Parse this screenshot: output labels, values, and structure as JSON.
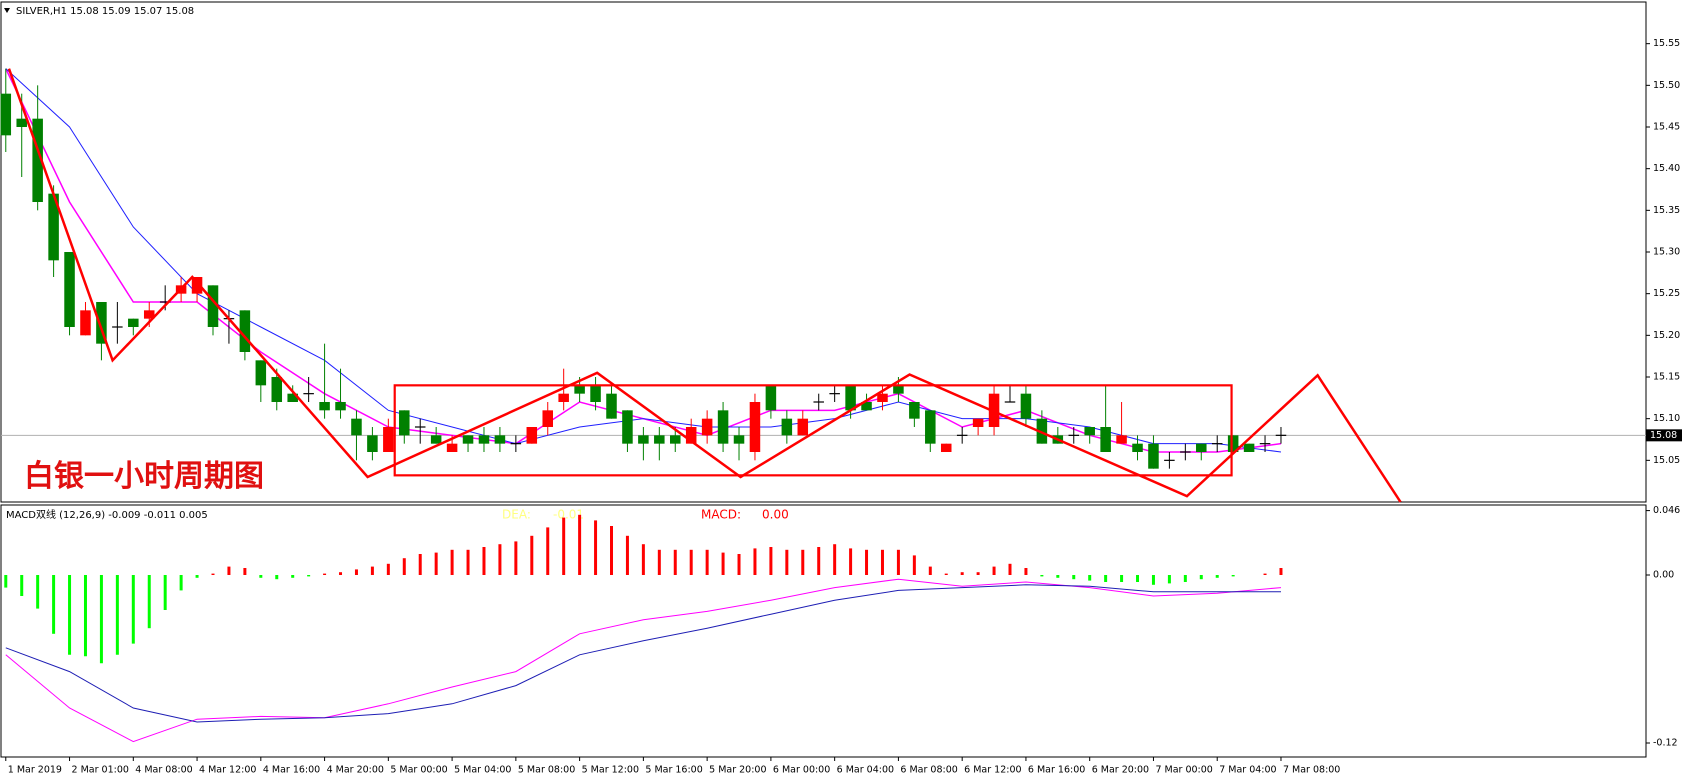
{
  "chart_data": [
    {
      "type": "candlestick",
      "title": "SILVER,H1 15.08 15.09 15.07 15.08",
      "annotation": "白银一小时周期图",
      "x": [
        0,
        1,
        2,
        3,
        4,
        5,
        6,
        7,
        8,
        9,
        10,
        11,
        12,
        13,
        14,
        15,
        16,
        17,
        18,
        19,
        20,
        21,
        22,
        23,
        24,
        25,
        26,
        27,
        28,
        29,
        30,
        31,
        32,
        33,
        34,
        35,
        36,
        37,
        38,
        39,
        40,
        41,
        42,
        43,
        44,
        45,
        46,
        47,
        48,
        49,
        50,
        51,
        52,
        53,
        54,
        55,
        56,
        57,
        58,
        59,
        60,
        61,
        62,
        63,
        64,
        65,
        66,
        67,
        68,
        69,
        70,
        71,
        72,
        73,
        74,
        75,
        76,
        77,
        78,
        79,
        80
      ],
      "open": [
        15.49,
        15.46,
        15.46,
        15.37,
        15.3,
        15.2,
        15.24,
        15.21,
        15.22,
        15.22,
        15.24,
        15.25,
        15.25,
        15.26,
        15.22,
        15.23,
        15.17,
        15.15,
        15.13,
        15.13,
        15.12,
        15.12,
        15.1,
        15.08,
        15.06,
        15.11,
        15.09,
        15.08,
        15.06,
        15.08,
        15.08,
        15.08,
        15.07,
        15.07,
        15.09,
        15.12,
        15.14,
        15.14,
        15.13,
        15.11,
        15.08,
        15.08,
        15.08,
        15.07,
        15.08,
        15.11,
        15.08,
        15.06,
        15.14,
        15.1,
        15.08,
        15.12,
        15.13,
        15.14,
        15.12,
        15.12,
        15.14,
        15.12,
        15.11,
        15.06,
        15.08,
        15.09,
        15.09,
        15.12,
        15.13,
        15.1,
        15.08,
        15.08,
        15.09,
        15.09,
        15.07,
        15.07,
        15.07,
        15.05,
        15.06,
        15.07,
        15.07,
        15.08,
        15.07,
        15.07,
        15.08
      ],
      "high": [
        15.52,
        15.49,
        15.5,
        15.38,
        15.3,
        15.24,
        15.24,
        15.24,
        15.22,
        15.24,
        15.26,
        15.27,
        15.27,
        15.26,
        15.23,
        15.23,
        15.17,
        15.16,
        15.14,
        15.15,
        15.19,
        15.16,
        15.11,
        15.09,
        15.1,
        15.11,
        15.1,
        15.09,
        15.08,
        15.08,
        15.09,
        15.09,
        15.08,
        15.09,
        15.12,
        15.16,
        15.15,
        15.15,
        15.14,
        15.11,
        15.09,
        15.09,
        15.09,
        15.1,
        15.11,
        15.12,
        15.09,
        15.13,
        15.14,
        15.11,
        15.11,
        15.13,
        15.14,
        15.14,
        15.13,
        15.14,
        15.15,
        15.12,
        15.11,
        15.07,
        15.09,
        15.1,
        15.14,
        15.14,
        15.14,
        15.11,
        15.09,
        15.09,
        15.09,
        15.14,
        15.12,
        15.08,
        15.08,
        15.06,
        15.07,
        15.07,
        15.08,
        15.08,
        15.07,
        15.08,
        15.09
      ],
      "low": [
        15.42,
        15.39,
        15.35,
        15.27,
        15.2,
        15.2,
        15.17,
        15.19,
        15.2,
        15.21,
        15.23,
        15.24,
        15.24,
        15.2,
        15.19,
        15.17,
        15.12,
        15.11,
        15.12,
        15.12,
        15.1,
        15.1,
        15.05,
        15.05,
        15.06,
        15.07,
        15.07,
        15.07,
        15.06,
        15.06,
        15.06,
        15.06,
        15.06,
        15.07,
        15.08,
        15.11,
        15.12,
        15.11,
        15.1,
        15.06,
        15.05,
        15.05,
        15.06,
        15.07,
        15.07,
        15.06,
        15.05,
        15.05,
        15.1,
        15.07,
        15.08,
        15.11,
        15.12,
        15.1,
        15.11,
        15.11,
        15.12,
        15.09,
        15.06,
        15.06,
        15.07,
        15.08,
        15.08,
        15.12,
        15.09,
        15.07,
        15.07,
        15.07,
        15.07,
        15.06,
        15.07,
        15.05,
        15.04,
        15.04,
        15.05,
        15.05,
        15.06,
        15.06,
        15.06,
        15.06,
        15.07
      ],
      "close": [
        15.44,
        15.45,
        15.36,
        15.29,
        15.21,
        15.23,
        15.19,
        15.21,
        15.21,
        15.23,
        15.24,
        15.26,
        15.27,
        15.21,
        15.22,
        15.18,
        15.14,
        15.12,
        15.12,
        15.13,
        15.11,
        15.11,
        15.08,
        15.06,
        15.09,
        15.08,
        15.09,
        15.07,
        15.07,
        15.07,
        15.07,
        15.07,
        15.07,
        15.09,
        15.11,
        15.13,
        15.13,
        15.12,
        15.1,
        15.07,
        15.07,
        15.07,
        15.07,
        15.09,
        15.1,
        15.07,
        15.07,
        15.12,
        15.11,
        15.08,
        15.1,
        15.12,
        15.13,
        15.11,
        15.11,
        15.13,
        15.13,
        15.1,
        15.07,
        15.07,
        15.08,
        15.1,
        15.13,
        15.12,
        15.1,
        15.07,
        15.07,
        15.08,
        15.08,
        15.06,
        15.08,
        15.06,
        15.04,
        15.05,
        15.06,
        15.06,
        15.07,
        15.06,
        15.06,
        15.07,
        15.08
      ],
      "up_color": "#ff0000",
      "down_color": "#008000",
      "doji_color": "#000000",
      "ma": [
        {
          "color": "#ff00ff",
          "x": [
            0,
            4,
            8,
            12,
            16,
            20,
            24,
            28,
            32,
            36,
            40,
            44,
            48,
            52,
            56,
            60,
            64,
            68,
            72,
            76,
            80
          ],
          "values": [
            15.52,
            15.36,
            15.24,
            15.24,
            15.18,
            15.13,
            15.09,
            15.08,
            15.07,
            15.12,
            15.1,
            15.08,
            15.11,
            15.11,
            15.13,
            15.09,
            15.11,
            15.08,
            15.06,
            15.06,
            15.07
          ]
        },
        {
          "color": "#2020ff",
          "x": [
            0,
            4,
            8,
            12,
            16,
            20,
            24,
            28,
            32,
            36,
            40,
            44,
            48,
            52,
            56,
            60,
            64,
            68,
            72,
            76,
            80
          ],
          "values": [
            15.52,
            15.45,
            15.33,
            15.25,
            15.21,
            15.17,
            15.11,
            15.09,
            15.07,
            15.09,
            15.1,
            15.09,
            15.09,
            15.1,
            15.12,
            15.1,
            15.1,
            15.09,
            15.07,
            15.07,
            15.06
          ]
        }
      ],
      "zigzag": {
        "color": "#ff0000",
        "x": [
          0.2,
          6.7,
          11.7,
          22.7,
          37.1,
          46.1,
          56.7,
          74.1,
          82.3,
          87.5
        ],
        "y": [
          15.52,
          15.17,
          15.27,
          15.03,
          15.155,
          15.03,
          15.153,
          15.007,
          15.152,
          15.0
        ]
      },
      "box": {
        "color": "#ff0000",
        "x": [
          24.4,
          76.9
        ],
        "y": [
          15.032,
          15.14
        ]
      },
      "last_price": 15.08,
      "xlim": [
        -0.3,
        102.9
      ],
      "ylim": [
        15.0,
        15.6
      ],
      "yticks": [
        15.05,
        {
          "value": 15.1,
          "label": "15.10"
        },
        15.15,
        {
          "value": 15.2,
          "label": "15.20"
        },
        15.25,
        {
          "value": 15.3,
          "label": "15.30"
        },
        15.35,
        {
          "value": 15.4,
          "label": "15.40"
        },
        15.45,
        {
          "value": 15.5,
          "label": "15.50"
        },
        15.55
      ]
    },
    {
      "type": "macd",
      "title": "MACD双线 (12,26,9) -0.009 -0.011 0.005",
      "labels": [
        "DEA:",
        "-0.01",
        "MACD:",
        "0.00"
      ],
      "x": [
        0,
        1,
        2,
        3,
        4,
        5,
        6,
        7,
        8,
        9,
        10,
        11,
        12,
        13,
        14,
        15,
        16,
        17,
        18,
        19,
        20,
        21,
        22,
        23,
        24,
        25,
        26,
        27,
        28,
        29,
        30,
        31,
        32,
        33,
        34,
        35,
        36,
        37,
        38,
        39,
        40,
        41,
        42,
        43,
        44,
        45,
        46,
        47,
        48,
        49,
        50,
        51,
        52,
        53,
        54,
        55,
        56,
        57,
        58,
        59,
        60,
        61,
        62,
        63,
        64,
        65,
        66,
        67,
        68,
        69,
        70,
        71,
        72,
        73,
        74,
        75,
        76,
        77,
        78,
        79,
        80
      ],
      "histogram": [
        -0.009,
        -0.015,
        -0.024,
        -0.042,
        -0.057,
        -0.058,
        -0.063,
        -0.057,
        -0.049,
        -0.038,
        -0.025,
        -0.011,
        -0.002,
        0.001,
        0.006,
        0.005,
        -0.002,
        -0.003,
        -0.002,
        -0.001,
        0.001,
        0.002,
        0.004,
        0.006,
        0.008,
        0.012,
        0.015,
        0.016,
        0.018,
        0.018,
        0.02,
        0.022,
        0.024,
        0.028,
        0.034,
        0.041,
        0.043,
        0.039,
        0.035,
        0.028,
        0.022,
        0.018,
        0.018,
        0.018,
        0.018,
        0.016,
        0.015,
        0.019,
        0.02,
        0.018,
        0.018,
        0.02,
        0.022,
        0.019,
        0.018,
        0.018,
        0.018,
        0.014,
        0.006,
        0.001,
        0.002,
        0.002,
        0.006,
        0.008,
        0.005,
        -0.001,
        -0.002,
        -0.003,
        -0.004,
        -0.005,
        -0.005,
        -0.005,
        -0.007,
        -0.006,
        -0.005,
        -0.003,
        -0.002,
        -0.001,
        0.0,
        0.001,
        0.005
      ],
      "up_color": "#ff0000",
      "down_color": "#00ff00",
      "lines": [
        {
          "color": "#ff00ff",
          "x": [
            0,
            4,
            8,
            12,
            16,
            20,
            24,
            28,
            32,
            36,
            40,
            44,
            48,
            52,
            56,
            60,
            64,
            68,
            72,
            76,
            80
          ],
          "values": [
            -0.057,
            -0.095,
            -0.119,
            -0.103,
            -0.101,
            -0.102,
            -0.092,
            -0.08,
            -0.069,
            -0.042,
            -0.032,
            -0.026,
            -0.018,
            -0.009,
            -0.003,
            -0.008,
            -0.005,
            -0.009,
            -0.015,
            -0.013,
            -0.009
          ]
        },
        {
          "color": "#1e1eb4",
          "x": [
            0,
            4,
            8,
            12,
            16,
            20,
            24,
            28,
            32,
            36,
            40,
            44,
            48,
            52,
            56,
            60,
            64,
            68,
            72,
            76,
            80
          ],
          "values": [
            -0.052,
            -0.069,
            -0.095,
            -0.105,
            -0.103,
            -0.102,
            -0.099,
            -0.092,
            -0.079,
            -0.057,
            -0.047,
            -0.038,
            -0.028,
            -0.018,
            -0.011,
            -0.009,
            -0.007,
            -0.008,
            -0.012,
            -0.012,
            -0.012
          ]
        }
      ],
      "xlim": [
        -0.3,
        102.9
      ],
      "ylim": [
        -0.13,
        0.05
      ],
      "yticks": [
        0.046,
        {
          "value": 0,
          "label": "0.00"
        },
        -0.12
      ],
      "xticks": [
        {
          "value": 0,
          "label": "1 Mar 2019"
        },
        {
          "value": 4,
          "label": "2 Mar 01:00"
        },
        {
          "value": 8,
          "label": "4 Mar 08:00"
        },
        {
          "value": 12,
          "label": "4 Mar 12:00"
        },
        {
          "value": 16,
          "label": "4 Mar 16:00"
        },
        {
          "value": 20,
          "label": "4 Mar 20:00"
        },
        {
          "value": 24,
          "label": "5 Mar 00:00"
        },
        {
          "value": 28,
          "label": "5 Mar 04:00"
        },
        {
          "value": 32,
          "label": "5 Mar 08:00"
        },
        {
          "value": 36,
          "label": "5 Mar 12:00"
        },
        {
          "value": 40,
          "label": "5 Mar 16:00"
        },
        {
          "value": 44,
          "label": "5 Mar 20:00"
        },
        {
          "value": 48,
          "label": "6 Mar 00:00"
        },
        {
          "value": 52,
          "label": "6 Mar 04:00"
        },
        {
          "value": 56,
          "label": "6 Mar 08:00"
        },
        {
          "value": 60,
          "label": "6 Mar 12:00"
        },
        {
          "value": 64,
          "label": "6 Mar 16:00"
        },
        {
          "value": 68,
          "label": "6 Mar 20:00"
        },
        {
          "value": 72,
          "label": "7 Mar 00:00"
        },
        {
          "value": 76,
          "label": "7 Mar 04:00"
        },
        {
          "value": 80,
          "label": "7 Mar 08:00"
        }
      ]
    }
  ]
}
